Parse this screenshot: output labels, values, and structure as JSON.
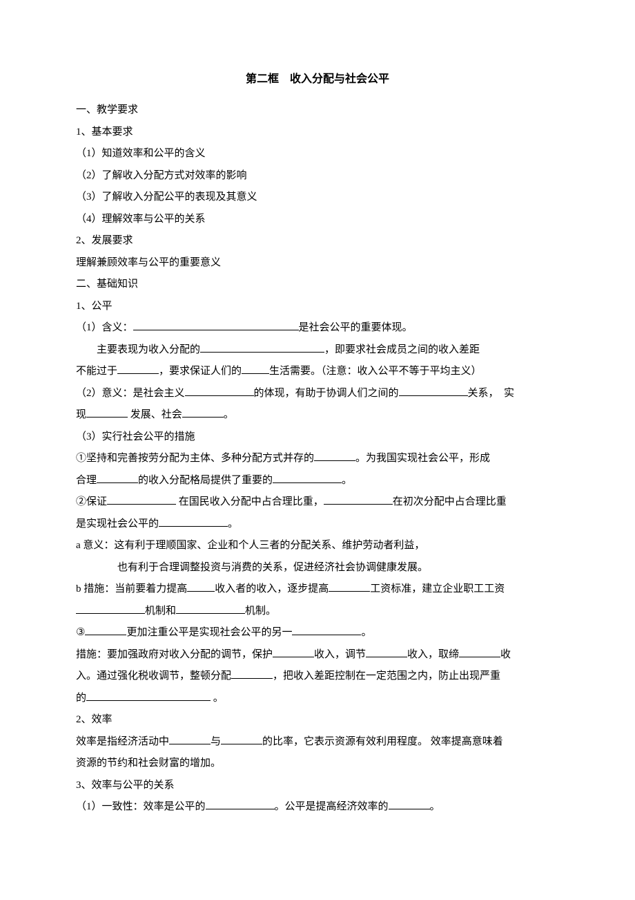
{
  "title": "第二框　收入分配与社会公平",
  "s1": {
    "heading": "一、教学要求",
    "item1": "1、基本要求",
    "p1": "（1）知道效率和公平的含义",
    "p2": "（2）了解收入分配方式对效率的影响",
    "p3": "（3）了解收入分配公平的表现及其意义",
    "p4": "（4）理解效率与公平的关系",
    "item2": "2、发展要求",
    "p5": "理解兼顾效率与公平的重要意义"
  },
  "s2": {
    "heading": "二、基础知识",
    "fair_heading": "1、公平",
    "f1a": "（1）含义：",
    "f1b": "是社会公平的重要体现。",
    "f2a": "主要表现为收入分配的",
    "f2b": "，即要求社会成员之间的收入差距",
    "f3a": "不能过于",
    "f3b": "，要求保证人们的",
    "f3c": "生活需要。（注意：收入公平不等于平均主义）",
    "f4a": "（2）意义：是社会主义",
    "f4b": "的体现，有助于协调人们之间的",
    "f4c": "关系，　实",
    "f5a": "现",
    "f5b": " 发展、社会",
    "f5c": "。",
    "f6": "（3）实行社会公平的措施",
    "f7a": "①坚持和完善按劳分配为主体、多种分配方式并存的",
    "f7b": "。为我国实现社会公平，形成",
    "f8a": "合理",
    "f8b": "的收入分配格局提供了重要的",
    "f8c": "。",
    "f9a": "②保证",
    "f9b": " 在国民收入分配中占合理比重，",
    "f9c": "在初次分配中占合理比重",
    "f10a": "是实现社会公平的",
    "f10b": "。",
    "f11": "a 意义：这有利于理顺国家、企业和个人三者的分配关系、维护劳动者利益，",
    "f12": "也有利于合理调整投资与消费的关系，促进经济社会协调健康发展。",
    "f13a": "b 措施：当前要着力提高",
    "f13b": "收入者的收入，逐步提高",
    "f13c": "工资标准，建立企业职工工资",
    "f14a": "机制和",
    "f14b": "机制。",
    "f15a": "③",
    "f15b": "更加注重公平是实现社会公平的另一",
    "f15c": "。",
    "f16a": "措施：要加强政府对收入分配的调节，保护",
    "f16b": "收入，调节",
    "f16c": "收入，取缔",
    "f16d": "收",
    "f17a": "入。通过强化税收调节，整顿分配",
    "f17b": "，把收入差距控制在一定范围之内，防止出现严重",
    "f18a": "的",
    "f18b": " 。",
    "eff_heading": "2、效率",
    "e1a": "效率是指经济活动中",
    "e1b": "与",
    "e1c": "的比率，它表示资源有效利用程度。 效率提高意味着",
    "e2": "资源的节约和社会财富的增加。",
    "rel_heading": "3、效率与公平的关系",
    "r1a": "（1）一致性：效率是公平的",
    "r1b": "。公平是提高经济效率的",
    "r1c": "。"
  }
}
